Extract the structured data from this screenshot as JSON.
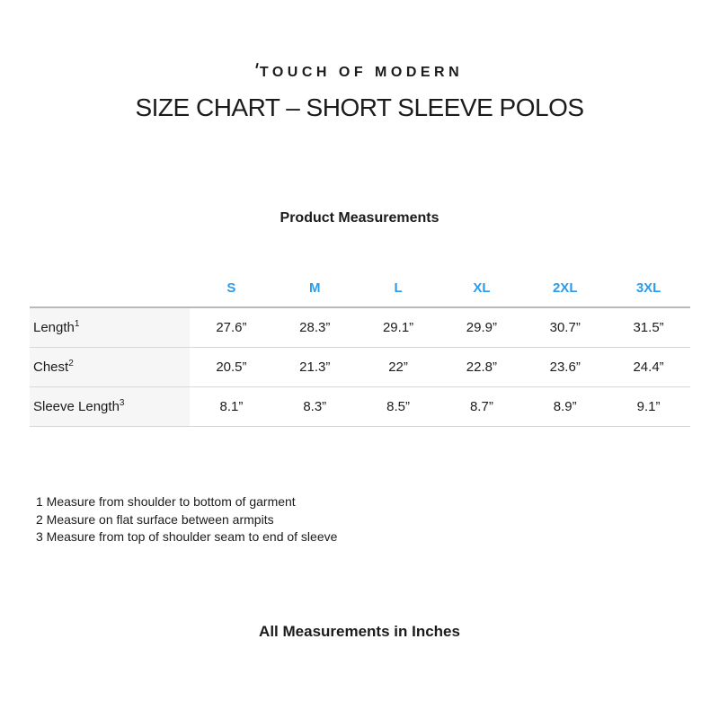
{
  "brand": {
    "logo_text": "TOUCH OF MODERN"
  },
  "page": {
    "title": "SIZE CHART – SHORT SLEEVE POLOS",
    "footer_note": "All Measurements in Inches"
  },
  "table": {
    "caption": "Product Measurements",
    "columns": [
      "S",
      "M",
      "L",
      "XL",
      "2XL",
      "3XL"
    ],
    "rows": [
      {
        "label": "Length",
        "sup": "1",
        "values": [
          "27.6”",
          "28.3”",
          "29.1”",
          "29.9”",
          "30.7”",
          "31.5”"
        ]
      },
      {
        "label": "Chest",
        "sup": "2",
        "values": [
          "20.5”",
          "21.3”",
          "22”",
          "22.8”",
          "23.6”",
          "24.4”"
        ]
      },
      {
        "label": "Sleeve Length",
        "sup": "3",
        "values": [
          "8.1”",
          "8.3”",
          "8.5”",
          "8.7”",
          "8.9”",
          "9.1”"
        ]
      }
    ]
  },
  "footnotes": [
    "1 Measure from shoulder to bottom of garment",
    "2 Measure on flat surface between armpits",
    "3 Measure from top of shoulder seam to end of sleeve"
  ],
  "colors": {
    "accent_blue": "#2D9BEB",
    "text": "#1B1B1B",
    "row_label_bg": "#F6F6F6",
    "header_rule": "#B9B9B9",
    "row_rule": "#D8D8D8"
  }
}
